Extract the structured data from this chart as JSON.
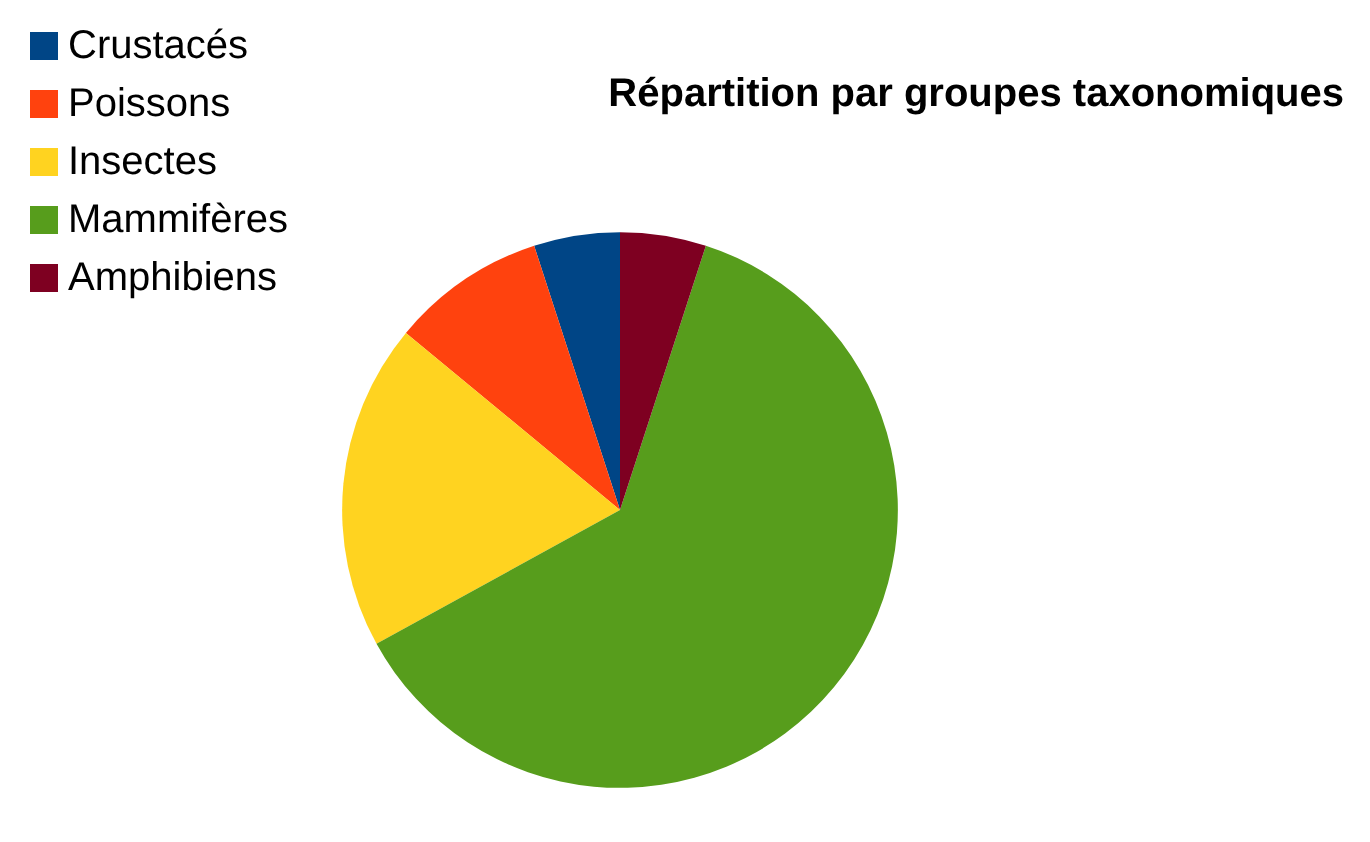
{
  "chart_data": {
    "type": "pie",
    "title": "Répartition par groupes taxonomiques",
    "categories": [
      "Crustacés",
      "Poissons",
      "Insectes",
      "Mammifères",
      "Amphibiens"
    ],
    "values": [
      5,
      9,
      19,
      62,
      5
    ],
    "colors": [
      "#004586",
      "#ff420e",
      "#ffd320",
      "#579d1c",
      "#7e0021"
    ],
    "legend": "top left"
  }
}
